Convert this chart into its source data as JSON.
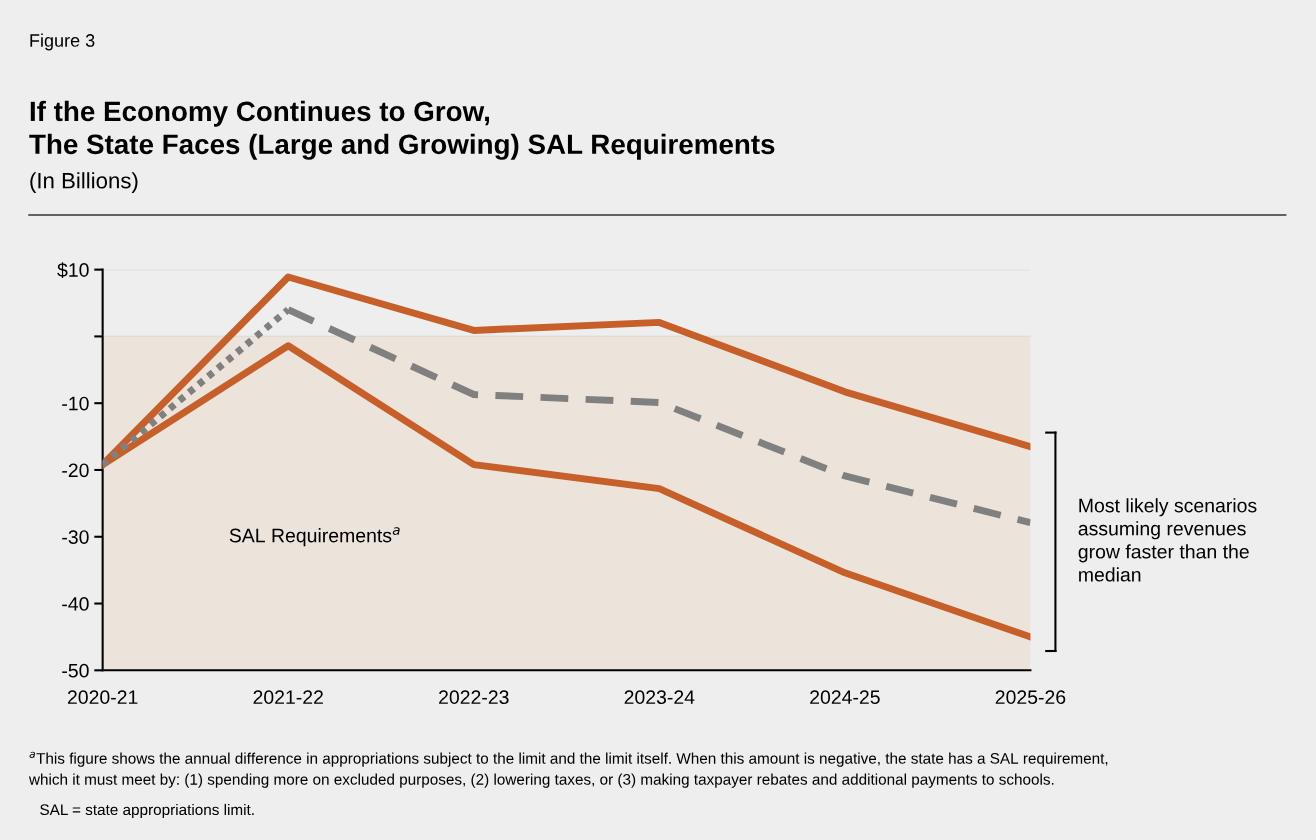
{
  "chart_data": {
    "type": "line",
    "title": "If the Economy Continues to Grow,\nThe State Faces (Large and Growing) SAL Requirements",
    "subtitle": "(In Billions)",
    "categories": [
      "2020-21",
      "2021-22",
      "2022-23",
      "2023-24",
      "2024-25",
      "2025-26"
    ],
    "series": [
      {
        "color": "#c65f2a",
        "values": [
          -19.2,
          8.9,
          0.9,
          2.1,
          -8.3,
          -16.5
        ],
        "line_style": "solid"
      },
      {
        "color": "#c65f2a",
        "values": [
          -19.2,
          -1.4,
          -19.2,
          -22.8,
          -35.4,
          -45.0
        ],
        "line_style": "solid"
      },
      {
        "color": "#808080",
        "values": [
          -19.2,
          4.0,
          null,
          null,
          null,
          null
        ],
        "line_style": "dotted"
      },
      {
        "color": "#808080",
        "values": [
          null,
          4.0,
          -8.7,
          -9.9,
          -20.9,
          -27.9
        ],
        "line_style": "dashed"
      }
    ],
    "ylim": [
      -50,
      10
    ],
    "yticks": [
      {
        "value": 10,
        "label": "$10"
      },
      {
        "value": 0,
        "label": null
      },
      -10,
      -20,
      -30,
      -40,
      -50
    ],
    "grid": "y",
    "legend": false,
    "marker": "none",
    "bands": [
      {
        "axis": "y",
        "from": -50,
        "to": 0,
        "label": "SAL Requirements$^{a}$",
        "color": "#ece3da"
      }
    ],
    "annotations": [
      "Figure 3",
      "Most likely scenarios\nassuming revenues\ngrow faster than the\nmedian",
      "$^{a}$This figure shows the annual difference in appropriations subject to the limit and the limit itself. When this amount is negative, the state has a SAL requirement,\nwhich it must meet by: (1) spending more on excluded purposes, (2) lowering taxes, or (3) making taxpayer rebates and additional payments to schools.",
      "SAL = state appropriations limit."
    ]
  }
}
